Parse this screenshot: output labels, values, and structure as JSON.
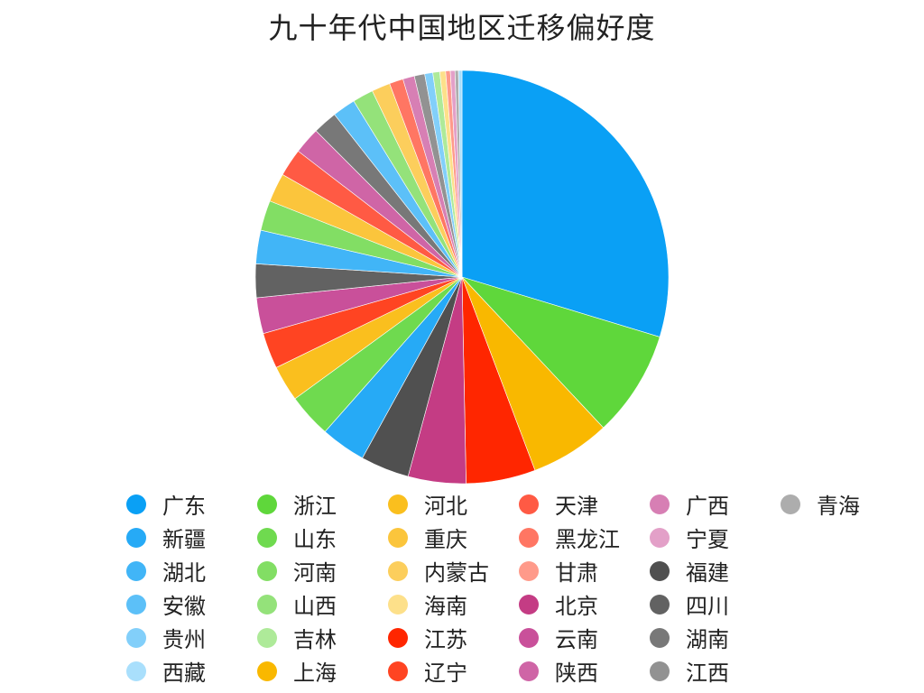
{
  "chart_data": {
    "type": "pie",
    "title": "九十年代中国地区迁移偏好度",
    "legend_position": "bottom",
    "slices": [
      {
        "label": "广东",
        "value": 32.8,
        "color": "#0aa0f5"
      },
      {
        "label": "浙江",
        "value": 9.2,
        "color": "#5fd73b"
      },
      {
        "label": "上海",
        "value": 6.9,
        "color": "#f9b800"
      },
      {
        "label": "江苏",
        "value": 6.0,
        "color": "#ff2600"
      },
      {
        "label": "北京",
        "value": 5.0,
        "color": "#c43c84"
      },
      {
        "label": "福建",
        "value": 4.2,
        "color": "#505050"
      },
      {
        "label": "新疆",
        "value": 3.9,
        "color": "#26aaf6"
      },
      {
        "label": "山东",
        "value": 3.8,
        "color": "#6fda4f"
      },
      {
        "label": "河北",
        "value": 3.1,
        "color": "#fabf1e"
      },
      {
        "label": "辽宁",
        "value": 3.1,
        "color": "#ff4422"
      },
      {
        "label": "云南",
        "value": 3.1,
        "color": "#c9509a"
      },
      {
        "label": "四川",
        "value": 2.9,
        "color": "#626262"
      },
      {
        "label": "湖北",
        "value": 2.9,
        "color": "#41b5f7"
      },
      {
        "label": "河南",
        "value": 2.6,
        "color": "#82de64"
      },
      {
        "label": "重庆",
        "value": 2.5,
        "color": "#fbc53c"
      },
      {
        "label": "天津",
        "value": 2.4,
        "color": "#ff5a44"
      },
      {
        "label": "陕西",
        "value": 2.3,
        "color": "#cf65a6"
      },
      {
        "label": "湖南",
        "value": 2.1,
        "color": "#787878"
      },
      {
        "label": "安徽",
        "value": 2.0,
        "color": "#5cc0f8"
      },
      {
        "label": "山西",
        "value": 1.8,
        "color": "#94e27a"
      },
      {
        "label": "内蒙古",
        "value": 1.6,
        "color": "#fcce5c"
      },
      {
        "label": "黑龙江",
        "value": 1.2,
        "color": "#ff7663"
      },
      {
        "label": "广西",
        "value": 1.0,
        "color": "#d77fb4"
      },
      {
        "label": "江西",
        "value": 0.9,
        "color": "#929292"
      },
      {
        "label": "贵州",
        "value": 0.7,
        "color": "#82cffa"
      },
      {
        "label": "吉林",
        "value": 0.6,
        "color": "#aeea99"
      },
      {
        "label": "海南",
        "value": 0.5,
        "color": "#fde08a"
      },
      {
        "label": "甘肃",
        "value": 0.4,
        "color": "#ff9a8a"
      },
      {
        "label": "宁夏",
        "value": 0.4,
        "color": "#e3a0c8"
      },
      {
        "label": "青海",
        "value": 0.3,
        "color": "#adadad"
      },
      {
        "label": "西藏",
        "value": 0.3,
        "color": "#a9dffc"
      }
    ],
    "legend_order": [
      "广东",
      "新疆",
      "湖北",
      "安徽",
      "贵州",
      "西藏",
      "浙江",
      "山东",
      "河南",
      "山西",
      "吉林",
      "上海",
      "河北",
      "重庆",
      "内蒙古",
      "海南",
      "江苏",
      "辽宁",
      "天津",
      "黑龙江",
      "甘肃",
      "北京",
      "云南",
      "陕西",
      "广西",
      "宁夏",
      "福建",
      "四川",
      "湖南",
      "江西",
      "青海"
    ]
  }
}
